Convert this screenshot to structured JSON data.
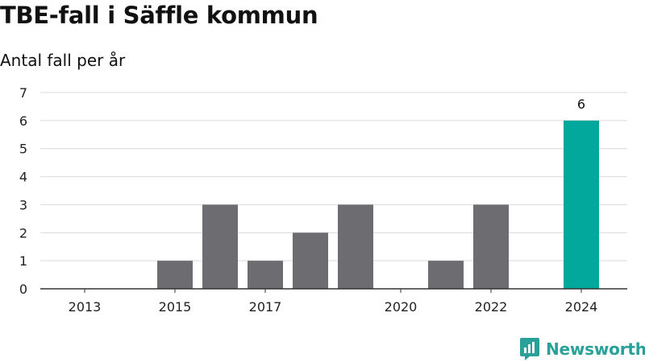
{
  "title": "TBE-fall i Säffle kommun",
  "subtitle": "Antal fall per år",
  "brand": {
    "name": "Newsworthy",
    "color": "#2aa198"
  },
  "colors": {
    "bar": "#6d6c71",
    "highlight": "#02a89b",
    "grid": "#d9d9d9",
    "axis": "#333333"
  },
  "chart_data": {
    "type": "bar",
    "title": "TBE-fall i Säffle kommun",
    "subtitle": "Antal fall per år",
    "xlabel": "",
    "ylabel": "",
    "categories": [
      "2013",
      "2014",
      "2015",
      "2016",
      "2017",
      "2018",
      "2019",
      "2020",
      "2021",
      "2022",
      "2023",
      "2024"
    ],
    "values": [
      0,
      0,
      1,
      3,
      1,
      2,
      3,
      0,
      1,
      3,
      0,
      6
    ],
    "highlight_index": 11,
    "ylim": [
      0,
      7
    ],
    "yticks": [
      0,
      1,
      2,
      3,
      4,
      5,
      6,
      7
    ],
    "xtick_labels": [
      "2013",
      "2015",
      "2017",
      "2020",
      "2022",
      "2024"
    ],
    "data_labels": [
      {
        "category": "2024",
        "text": "6"
      }
    ],
    "grid": true,
    "legend": "none"
  }
}
